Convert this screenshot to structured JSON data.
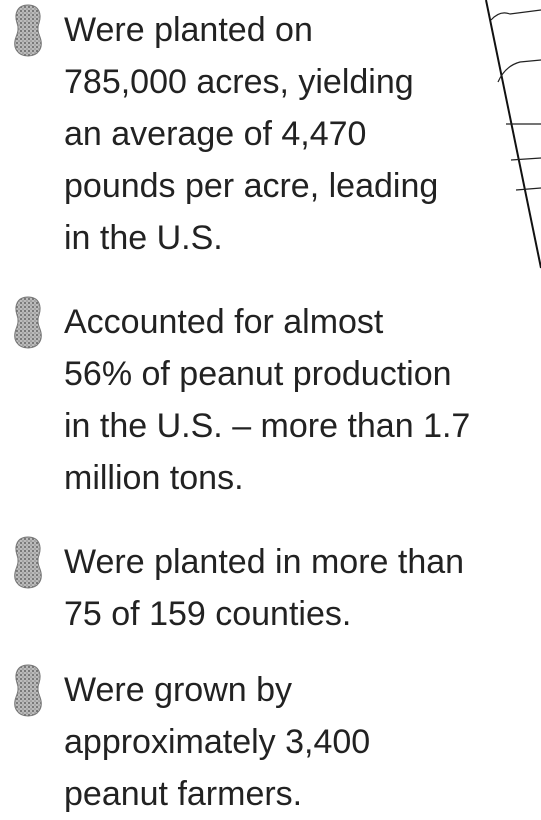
{
  "items": [
    {
      "lines": [
        "Were planted on",
        "785,000 acres, yielding",
        "an average of 4,470",
        "pounds per acre, leading",
        "in the U.S."
      ]
    },
    {
      "lines": [
        "Accounted for almost",
        "56% of peanut production",
        "in the U.S. – more than 1.7",
        "million tons."
      ]
    },
    {
      "lines": [
        "Were planted in more than",
        "75 of 159 counties."
      ]
    },
    {
      "lines": [
        "Were grown by",
        "approximately 3,400",
        "peanut farmers."
      ]
    }
  ]
}
